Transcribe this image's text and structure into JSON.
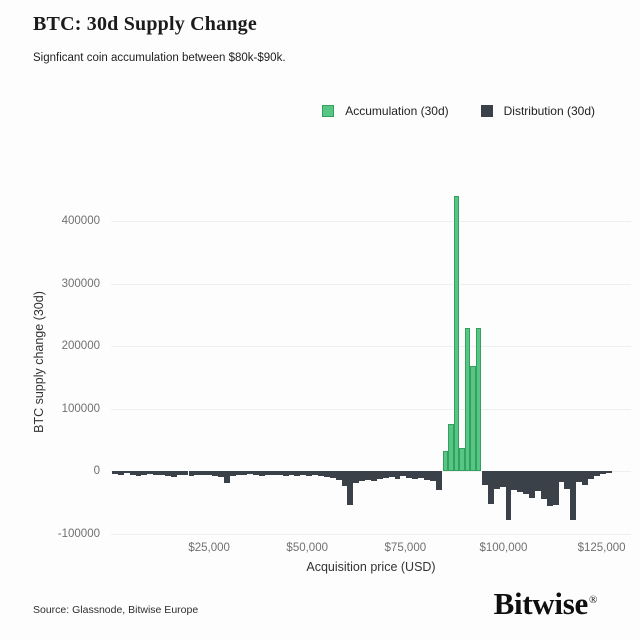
{
  "header": {
    "title": "BTC: 30d Supply Change",
    "subtitle": "Signficant coin accumulation between $80k-$90k."
  },
  "legend": {
    "items": [
      {
        "label": "Accumulation (30d)",
        "color": "#57c583",
        "border": "#33a060"
      },
      {
        "label": "Distribution (30d)",
        "color": "#3a4148",
        "border": "#3a4148"
      }
    ]
  },
  "footer": {
    "source": "Source: Glassnode, Bitwise Europe",
    "brand": "Bitwise",
    "reg": "®"
  },
  "colors": {
    "accumulation": "#57c583",
    "accumulation_edge": "#33a060",
    "distribution": "#3a4148",
    "gridline": "#efefef",
    "tick_text": "#707070",
    "background": "#fdfdfd"
  },
  "chart_data": {
    "type": "bar",
    "title": "BTC: 30d Supply Change",
    "xlabel": "Acquisition price (USD)",
    "ylabel": "BTC supply change (30d)",
    "xlim": [
      0,
      132500
    ],
    "ylim": [
      -100000,
      450000
    ],
    "grid": true,
    "legend_position": "top-right",
    "xticks": [
      {
        "value": 25000,
        "label": "$25,000"
      },
      {
        "value": 50000,
        "label": "$50,000"
      },
      {
        "value": 75000,
        "label": "$75,000"
      },
      {
        "value": 100000,
        "label": "$100,000"
      },
      {
        "value": 125000,
        "label": "$125,000"
      }
    ],
    "yticks": [
      {
        "value": -100000,
        "label": "-100000"
      },
      {
        "value": 0,
        "label": "0"
      },
      {
        "value": 100000,
        "label": "100000"
      },
      {
        "value": 200000,
        "label": "200000"
      },
      {
        "value": 300000,
        "label": "300000"
      },
      {
        "value": 400000,
        "label": "400000"
      }
    ],
    "series": [
      {
        "name": "Accumulation (30d)",
        "color": "#57c583",
        "edge_color": "#33a060",
        "bar_width_usd": 1400,
        "points": [
          {
            "x": 85200,
            "y": 33000
          },
          {
            "x": 86600,
            "y": 76000
          },
          {
            "x": 88000,
            "y": 440000
          },
          {
            "x": 89400,
            "y": 37000
          },
          {
            "x": 90800,
            "y": 230000
          },
          {
            "x": 92200,
            "y": 168000
          },
          {
            "x": 93600,
            "y": 230000
          }
        ]
      },
      {
        "name": "Distribution (30d)",
        "color": "#3a4148",
        "edge_color": "#3a4148",
        "bar_width_usd": 1500,
        "points": [
          {
            "x": 1000,
            "y": -4000
          },
          {
            "x": 2500,
            "y": -6000
          },
          {
            "x": 4000,
            "y": -3000
          },
          {
            "x": 5500,
            "y": -5000
          },
          {
            "x": 7000,
            "y": -8000
          },
          {
            "x": 8500,
            "y": -5000
          },
          {
            "x": 10000,
            "y": -4000
          },
          {
            "x": 11500,
            "y": -6000
          },
          {
            "x": 13000,
            "y": -5000
          },
          {
            "x": 14500,
            "y": -7000
          },
          {
            "x": 16000,
            "y": -9000
          },
          {
            "x": 17500,
            "y": -6000
          },
          {
            "x": 19000,
            "y": -5000
          },
          {
            "x": 20500,
            "y": -7000
          },
          {
            "x": 22000,
            "y": -5000
          },
          {
            "x": 23500,
            "y": -6000
          },
          {
            "x": 25000,
            "y": -5000
          },
          {
            "x": 26500,
            "y": -7000
          },
          {
            "x": 28000,
            "y": -9000
          },
          {
            "x": 29500,
            "y": -18000
          },
          {
            "x": 31000,
            "y": -8000
          },
          {
            "x": 32500,
            "y": -5000
          },
          {
            "x": 34000,
            "y": -6000
          },
          {
            "x": 35500,
            "y": -4000
          },
          {
            "x": 37000,
            "y": -5000
          },
          {
            "x": 38500,
            "y": -7000
          },
          {
            "x": 40000,
            "y": -6000
          },
          {
            "x": 41500,
            "y": -5000
          },
          {
            "x": 43000,
            "y": -6000
          },
          {
            "x": 44500,
            "y": -8000
          },
          {
            "x": 46000,
            "y": -5000
          },
          {
            "x": 47500,
            "y": -7000
          },
          {
            "x": 49000,
            "y": -6000
          },
          {
            "x": 50500,
            "y": -8000
          },
          {
            "x": 52000,
            "y": -6000
          },
          {
            "x": 53500,
            "y": -7000
          },
          {
            "x": 55000,
            "y": -9000
          },
          {
            "x": 56500,
            "y": -10000
          },
          {
            "x": 58000,
            "y": -14000
          },
          {
            "x": 59500,
            "y": -24000
          },
          {
            "x": 61000,
            "y": -53000
          },
          {
            "x": 62500,
            "y": -19000
          },
          {
            "x": 64000,
            "y": -15000
          },
          {
            "x": 65500,
            "y": -13000
          },
          {
            "x": 67000,
            "y": -16000
          },
          {
            "x": 68500,
            "y": -12000
          },
          {
            "x": 70000,
            "y": -10000
          },
          {
            "x": 71500,
            "y": -9000
          },
          {
            "x": 73000,
            "y": -12000
          },
          {
            "x": 74500,
            "y": -8000
          },
          {
            "x": 76000,
            "y": -10000
          },
          {
            "x": 77500,
            "y": -12000
          },
          {
            "x": 79000,
            "y": -10000
          },
          {
            "x": 80500,
            "y": -13000
          },
          {
            "x": 82000,
            "y": -16000
          },
          {
            "x": 83500,
            "y": -29000
          },
          {
            "x": 95300,
            "y": -21000
          },
          {
            "x": 96800,
            "y": -52000
          },
          {
            "x": 98300,
            "y": -28000
          },
          {
            "x": 99800,
            "y": -25000
          },
          {
            "x": 101300,
            "y": -78000
          },
          {
            "x": 102800,
            "y": -29000
          },
          {
            "x": 104300,
            "y": -33000
          },
          {
            "x": 105800,
            "y": -36000
          },
          {
            "x": 107300,
            "y": -43000
          },
          {
            "x": 108800,
            "y": -31000
          },
          {
            "x": 110300,
            "y": -44000
          },
          {
            "x": 111800,
            "y": -56000
          },
          {
            "x": 113300,
            "y": -54000
          },
          {
            "x": 114800,
            "y": -17000
          },
          {
            "x": 116300,
            "y": -28000
          },
          {
            "x": 117800,
            "y": -78000
          },
          {
            "x": 119300,
            "y": -17000
          },
          {
            "x": 120800,
            "y": -21000
          },
          {
            "x": 122300,
            "y": -12000
          },
          {
            "x": 123800,
            "y": -7000
          },
          {
            "x": 125300,
            "y": -4000
          },
          {
            "x": 126800,
            "y": -2000
          }
        ]
      }
    ]
  }
}
